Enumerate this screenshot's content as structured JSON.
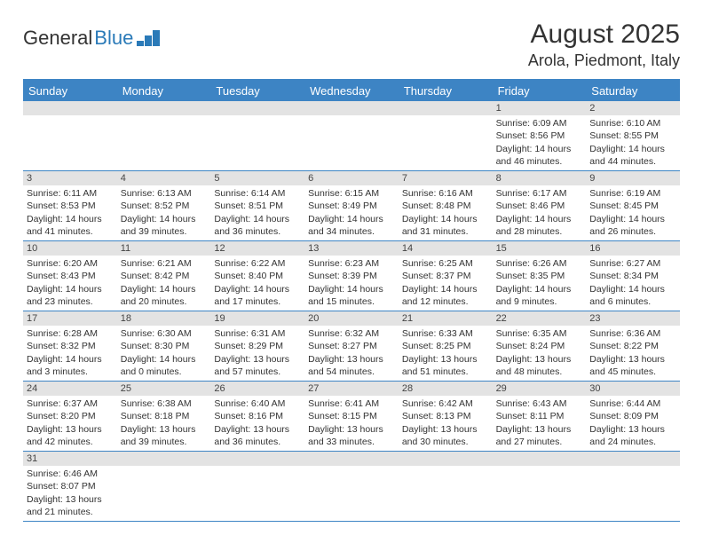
{
  "logo": {
    "part1": "General",
    "part2": "Blue"
  },
  "title": "August 2025",
  "location": "Arola, Piedmont, Italy",
  "colors": {
    "header_bg": "#3d84c4",
    "header_text": "#ffffff",
    "daynum_bg": "#e3e3e3",
    "border": "#3d84c4",
    "text": "#333333",
    "logo_blue": "#2a7ab8"
  },
  "day_names": [
    "Sunday",
    "Monday",
    "Tuesday",
    "Wednesday",
    "Thursday",
    "Friday",
    "Saturday"
  ],
  "first_day_index": 5,
  "days": [
    {
      "n": 1,
      "sunrise": "6:09 AM",
      "sunset": "8:56 PM",
      "daylight": "14 hours and 46 minutes."
    },
    {
      "n": 2,
      "sunrise": "6:10 AM",
      "sunset": "8:55 PM",
      "daylight": "14 hours and 44 minutes."
    },
    {
      "n": 3,
      "sunrise": "6:11 AM",
      "sunset": "8:53 PM",
      "daylight": "14 hours and 41 minutes."
    },
    {
      "n": 4,
      "sunrise": "6:13 AM",
      "sunset": "8:52 PM",
      "daylight": "14 hours and 39 minutes."
    },
    {
      "n": 5,
      "sunrise": "6:14 AM",
      "sunset": "8:51 PM",
      "daylight": "14 hours and 36 minutes."
    },
    {
      "n": 6,
      "sunrise": "6:15 AM",
      "sunset": "8:49 PM",
      "daylight": "14 hours and 34 minutes."
    },
    {
      "n": 7,
      "sunrise": "6:16 AM",
      "sunset": "8:48 PM",
      "daylight": "14 hours and 31 minutes."
    },
    {
      "n": 8,
      "sunrise": "6:17 AM",
      "sunset": "8:46 PM",
      "daylight": "14 hours and 28 minutes."
    },
    {
      "n": 9,
      "sunrise": "6:19 AM",
      "sunset": "8:45 PM",
      "daylight": "14 hours and 26 minutes."
    },
    {
      "n": 10,
      "sunrise": "6:20 AM",
      "sunset": "8:43 PM",
      "daylight": "14 hours and 23 minutes."
    },
    {
      "n": 11,
      "sunrise": "6:21 AM",
      "sunset": "8:42 PM",
      "daylight": "14 hours and 20 minutes."
    },
    {
      "n": 12,
      "sunrise": "6:22 AM",
      "sunset": "8:40 PM",
      "daylight": "14 hours and 17 minutes."
    },
    {
      "n": 13,
      "sunrise": "6:23 AM",
      "sunset": "8:39 PM",
      "daylight": "14 hours and 15 minutes."
    },
    {
      "n": 14,
      "sunrise": "6:25 AM",
      "sunset": "8:37 PM",
      "daylight": "14 hours and 12 minutes."
    },
    {
      "n": 15,
      "sunrise": "6:26 AM",
      "sunset": "8:35 PM",
      "daylight": "14 hours and 9 minutes."
    },
    {
      "n": 16,
      "sunrise": "6:27 AM",
      "sunset": "8:34 PM",
      "daylight": "14 hours and 6 minutes."
    },
    {
      "n": 17,
      "sunrise": "6:28 AM",
      "sunset": "8:32 PM",
      "daylight": "14 hours and 3 minutes."
    },
    {
      "n": 18,
      "sunrise": "6:30 AM",
      "sunset": "8:30 PM",
      "daylight": "14 hours and 0 minutes."
    },
    {
      "n": 19,
      "sunrise": "6:31 AM",
      "sunset": "8:29 PM",
      "daylight": "13 hours and 57 minutes."
    },
    {
      "n": 20,
      "sunrise": "6:32 AM",
      "sunset": "8:27 PM",
      "daylight": "13 hours and 54 minutes."
    },
    {
      "n": 21,
      "sunrise": "6:33 AM",
      "sunset": "8:25 PM",
      "daylight": "13 hours and 51 minutes."
    },
    {
      "n": 22,
      "sunrise": "6:35 AM",
      "sunset": "8:24 PM",
      "daylight": "13 hours and 48 minutes."
    },
    {
      "n": 23,
      "sunrise": "6:36 AM",
      "sunset": "8:22 PM",
      "daylight": "13 hours and 45 minutes."
    },
    {
      "n": 24,
      "sunrise": "6:37 AM",
      "sunset": "8:20 PM",
      "daylight": "13 hours and 42 minutes."
    },
    {
      "n": 25,
      "sunrise": "6:38 AM",
      "sunset": "8:18 PM",
      "daylight": "13 hours and 39 minutes."
    },
    {
      "n": 26,
      "sunrise": "6:40 AM",
      "sunset": "8:16 PM",
      "daylight": "13 hours and 36 minutes."
    },
    {
      "n": 27,
      "sunrise": "6:41 AM",
      "sunset": "8:15 PM",
      "daylight": "13 hours and 33 minutes."
    },
    {
      "n": 28,
      "sunrise": "6:42 AM",
      "sunset": "8:13 PM",
      "daylight": "13 hours and 30 minutes."
    },
    {
      "n": 29,
      "sunrise": "6:43 AM",
      "sunset": "8:11 PM",
      "daylight": "13 hours and 27 minutes."
    },
    {
      "n": 30,
      "sunrise": "6:44 AM",
      "sunset": "8:09 PM",
      "daylight": "13 hours and 24 minutes."
    },
    {
      "n": 31,
      "sunrise": "6:46 AM",
      "sunset": "8:07 PM",
      "daylight": "13 hours and 21 minutes."
    }
  ],
  "labels": {
    "sunrise": "Sunrise:",
    "sunset": "Sunset:",
    "daylight": "Daylight:"
  }
}
